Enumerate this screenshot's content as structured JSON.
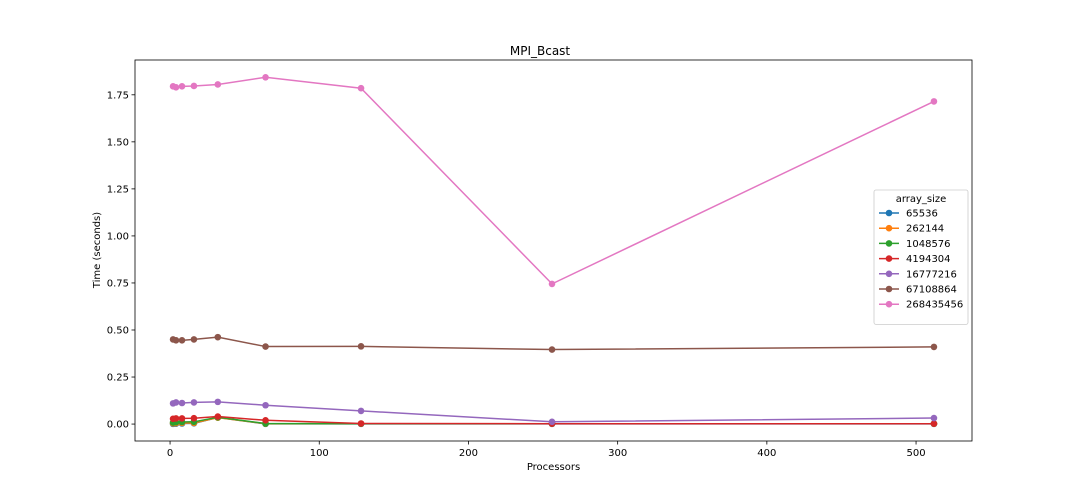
{
  "chart_data": {
    "type": "line",
    "title": "MPI_Bcast",
    "xlabel": "Processors",
    "ylabel": "Time (seconds)",
    "xlim": [
      -23.5,
      537.5
    ],
    "ylim": [
      -0.09,
      1.935
    ],
    "xticks": [
      0,
      100,
      200,
      300,
      400,
      500
    ],
    "yticks": [
      0.0,
      0.25,
      0.5,
      0.75,
      1.0,
      1.25,
      1.5,
      1.75
    ],
    "ytick_labels": [
      "0.00",
      "0.25",
      "0.50",
      "0.75",
      "1.00",
      "1.25",
      "1.50",
      "1.75"
    ],
    "grid": false,
    "legend": {
      "title": "array_size",
      "placement": "center-right"
    },
    "x": [
      2,
      4,
      8,
      16,
      32,
      64,
      128,
      256,
      512
    ],
    "series": [
      {
        "name": "65536",
        "color": "#1f77b4",
        "values": [
          0.001,
          0.002,
          0.003,
          0.004,
          0.035,
          0.001,
          0.001,
          0.001,
          0.001
        ]
      },
      {
        "name": "262144",
        "color": "#ff7f0e",
        "values": [
          0.004,
          0.005,
          0.006,
          0.006,
          0.034,
          0.002,
          0.002,
          0.002,
          0.002
        ]
      },
      {
        "name": "1048576",
        "color": "#2ca02c",
        "values": [
          0.008,
          0.01,
          0.011,
          0.012,
          0.036,
          0.003,
          0.002,
          0.002,
          0.002
        ]
      },
      {
        "name": "4194304",
        "color": "#d62728",
        "values": [
          0.028,
          0.03,
          0.03,
          0.031,
          0.04,
          0.02,
          0.003,
          0.002,
          0.002
        ]
      },
      {
        "name": "16777216",
        "color": "#9467bd",
        "values": [
          0.11,
          0.115,
          0.112,
          0.115,
          0.118,
          0.1,
          0.07,
          0.012,
          0.032
        ]
      },
      {
        "name": "67108864",
        "color": "#8c564b",
        "values": [
          0.45,
          0.445,
          0.445,
          0.45,
          0.462,
          0.412,
          0.413,
          0.396,
          0.41
        ]
      },
      {
        "name": "268435456",
        "color": "#e377c2",
        "values": [
          1.795,
          1.79,
          1.795,
          1.797,
          1.805,
          1.843,
          1.785,
          0.745,
          1.715
        ]
      }
    ]
  }
}
